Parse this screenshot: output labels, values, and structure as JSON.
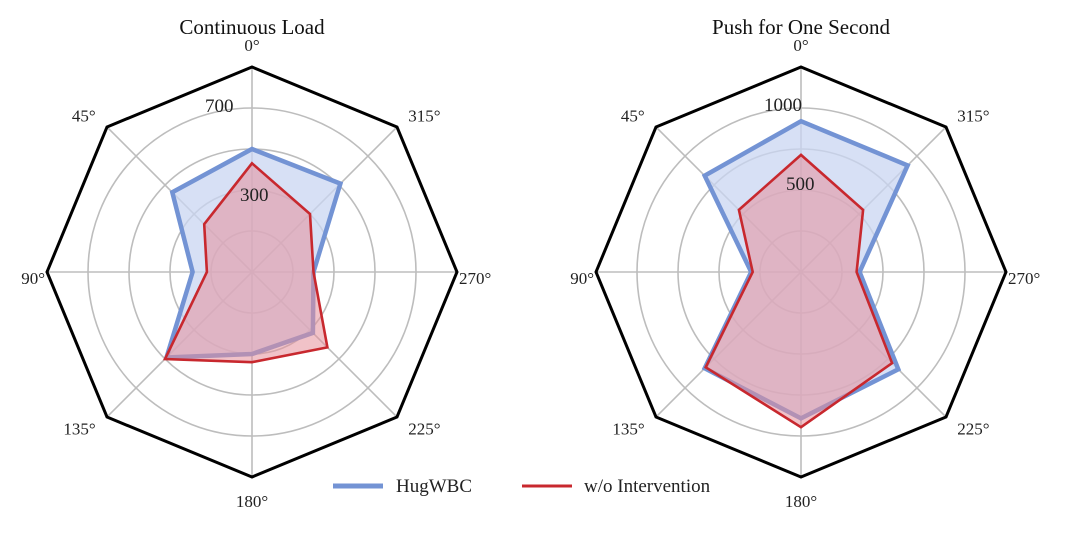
{
  "colors": {
    "hugwbc": "#7393d4",
    "hugwbc_fill": "#c9d6f1",
    "intervention": "#c8282e",
    "intervention_fill": "#e58f9b",
    "grid": "#bdbdbd",
    "frame": "#000000"
  },
  "legend": {
    "hugwbc_label": "HugWBC",
    "intervention_label": "w/o Intervention"
  },
  "chart_data": [
    {
      "type": "radar",
      "title": "Continuous Load",
      "directions": [
        "0°",
        "315°",
        "270°",
        "225°",
        "180°",
        "135°",
        "90°",
        "45°"
      ],
      "radial_range": [
        0,
        1000
      ],
      "grid_rings": [
        200,
        400,
        600,
        800
      ],
      "ring_labels": [
        "700",
        "300"
      ],
      "series": [
        {
          "name": "HugWBC",
          "values": [
            600,
            610,
            300,
            420,
            400,
            590,
            290,
            550
          ]
        },
        {
          "name": "w/o Intervention",
          "values": [
            530,
            400,
            300,
            520,
            440,
            600,
            220,
            330
          ]
        }
      ],
      "grid": true,
      "legend_position": "bottom-center"
    },
    {
      "type": "radar",
      "title": "Push for One Second",
      "directions": [
        "0°",
        "315°",
        "270°",
        "225°",
        "180°",
        "135°",
        "90°",
        "45°"
      ],
      "radial_range": [
        0,
        1400
      ],
      "grid_rings": [
        280,
        560,
        840,
        1120
      ],
      "ring_labels": [
        "1000",
        "500"
      ],
      "series": [
        {
          "name": "HugWBC",
          "values": [
            1030,
            1030,
            400,
            940,
            1000,
            930,
            340,
            930
          ]
        },
        {
          "name": "w/o Intervention",
          "values": [
            800,
            600,
            380,
            880,
            1060,
            920,
            330,
            600
          ]
        }
      ],
      "grid": true,
      "legend_position": "bottom-center"
    }
  ]
}
